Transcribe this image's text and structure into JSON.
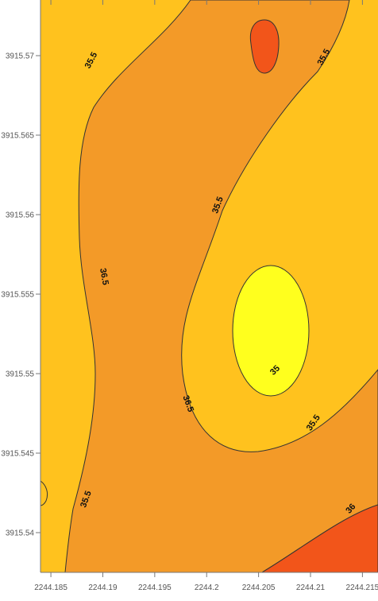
{
  "chart_data": {
    "type": "contour",
    "title": "",
    "xlabel": "",
    "ylabel": "",
    "xlim": [
      2244.184,
      2244.2165
    ],
    "ylim": [
      3915.5375,
      3915.5735
    ],
    "x_ticks": [
      {
        "value": 2244.185,
        "label": "2244.185"
      },
      {
        "value": 2244.19,
        "label": "2244.19"
      },
      {
        "value": 2244.195,
        "label": "2244.195"
      },
      {
        "value": 2244.2,
        "label": "2244.2"
      },
      {
        "value": 2244.205,
        "label": "2244.205"
      },
      {
        "value": 2244.21,
        "label": "2244.21"
      },
      {
        "value": 2244.215,
        "label": "2244.215"
      }
    ],
    "y_ticks": [
      {
        "value": 3915.57,
        "label": "3915.57"
      },
      {
        "value": 3915.565,
        "label": "3915.565"
      },
      {
        "value": 3915.56,
        "label": "3915.56"
      },
      {
        "value": 3915.555,
        "label": "3915.555"
      },
      {
        "value": 3915.55,
        "label": "3915.55"
      },
      {
        "value": 3915.545,
        "label": "3915.545"
      },
      {
        "value": 3915.54,
        "label": "3915.54"
      }
    ],
    "levels": [
      {
        "value": 35,
        "color": "#ffff1e"
      },
      {
        "value": 35.5,
        "color": "#ffc21e"
      },
      {
        "value": 36,
        "color": "#f39a28"
      },
      {
        "value": 36.5,
        "color": "#f2551a"
      }
    ],
    "contour_labels": [
      {
        "text": "35.5",
        "x": 2244.1889,
        "y": 3915.5697
      },
      {
        "text": "35.5",
        "x": 2244.2113,
        "y": 3915.5699
      },
      {
        "text": "35.5",
        "x": 2244.2011,
        "y": 3915.5606
      },
      {
        "text": "36.5",
        "x": 2244.1901,
        "y": 3915.5561
      },
      {
        "text": "35",
        "x": 2244.2066,
        "y": 3915.5502
      },
      {
        "text": "36.5",
        "x": 2244.1982,
        "y": 3915.5481
      },
      {
        "text": "35.5",
        "x": 2244.2103,
        "y": 3915.5469
      },
      {
        "text": "35.5",
        "x": 2244.1884,
        "y": 3915.5421
      },
      {
        "text": "36",
        "x": 2244.2139,
        "y": 3915.5415
      }
    ]
  }
}
